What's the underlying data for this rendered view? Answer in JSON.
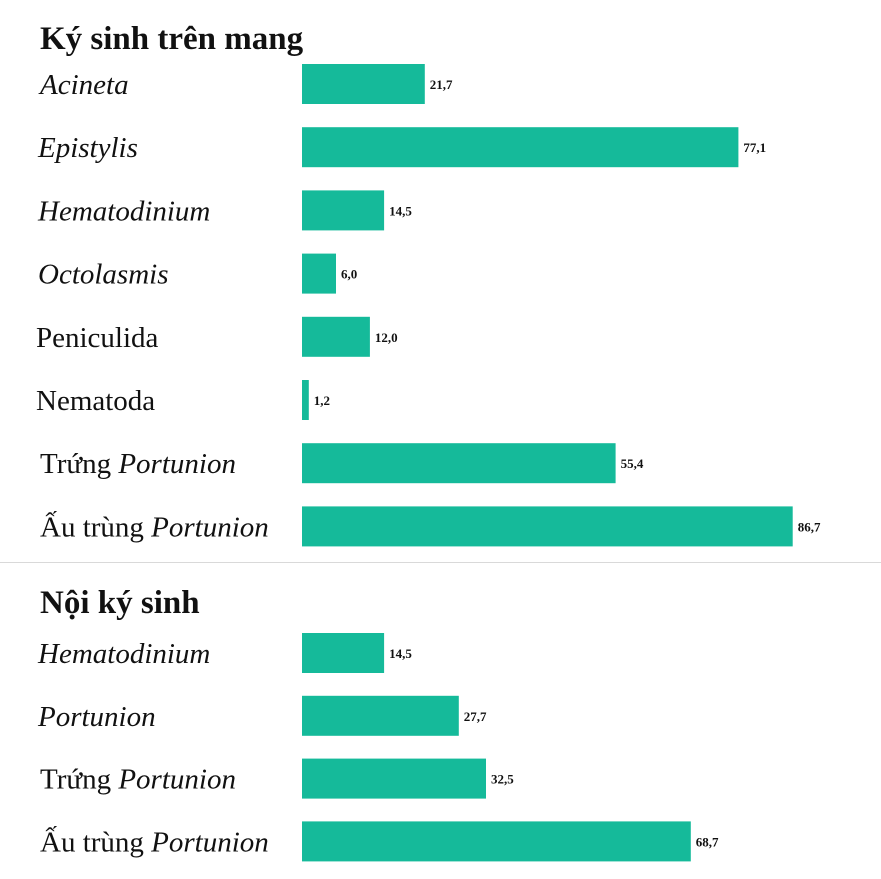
{
  "colors": {
    "bar": "#15BA9A",
    "text": "#111111",
    "divider": "#d9d9d9"
  },
  "chart_data": [
    {
      "type": "bar",
      "orientation": "horizontal",
      "title": "Ký sinh trên mang",
      "categories": [
        [
          {
            "text": "Acineta",
            "italic": true
          }
        ],
        [
          {
            "text": "Epistylis",
            "italic": true
          }
        ],
        [
          {
            "text": "Hematodinium",
            "italic": true
          }
        ],
        [
          {
            "text": "Octolasmis",
            "italic": true
          }
        ],
        [
          {
            "text": "Peniculida",
            "italic": false
          }
        ],
        [
          {
            "text": "Nematoda",
            "italic": false
          }
        ],
        [
          {
            "text": "Trứng ",
            "italic": false
          },
          {
            "text": "Portunion",
            "italic": true
          }
        ],
        [
          {
            "text": "Ấu trùng ",
            "italic": false
          },
          {
            "text": "Portunion",
            "italic": true
          }
        ]
      ],
      "values": [
        21.7,
        77.1,
        14.5,
        6.0,
        12.0,
        1.2,
        55.4,
        86.7
      ],
      "value_labels": [
        "21,7",
        "77,1",
        "14,5",
        "6,0",
        "12,0",
        "1,2",
        "55,4",
        "86,7"
      ],
      "xlim": [
        0,
        100
      ],
      "grid": false,
      "legend": "none"
    },
    {
      "type": "bar",
      "orientation": "horizontal",
      "title": "Nội ký sinh",
      "categories": [
        [
          {
            "text": "Hematodinium",
            "italic": true
          }
        ],
        [
          {
            "text": "Portunion",
            "italic": true
          }
        ],
        [
          {
            "text": "Trứng ",
            "italic": false
          },
          {
            "text": "Portunion",
            "italic": true
          }
        ],
        [
          {
            "text": "Ấu trùng ",
            "italic": false
          },
          {
            "text": "Portunion",
            "italic": true
          }
        ]
      ],
      "values": [
        14.5,
        27.7,
        32.5,
        68.7
      ],
      "value_labels": [
        "14,5",
        "27,7",
        "32,5",
        "68,7"
      ],
      "xlim": [
        0,
        100
      ],
      "grid": false,
      "legend": "none"
    }
  ]
}
